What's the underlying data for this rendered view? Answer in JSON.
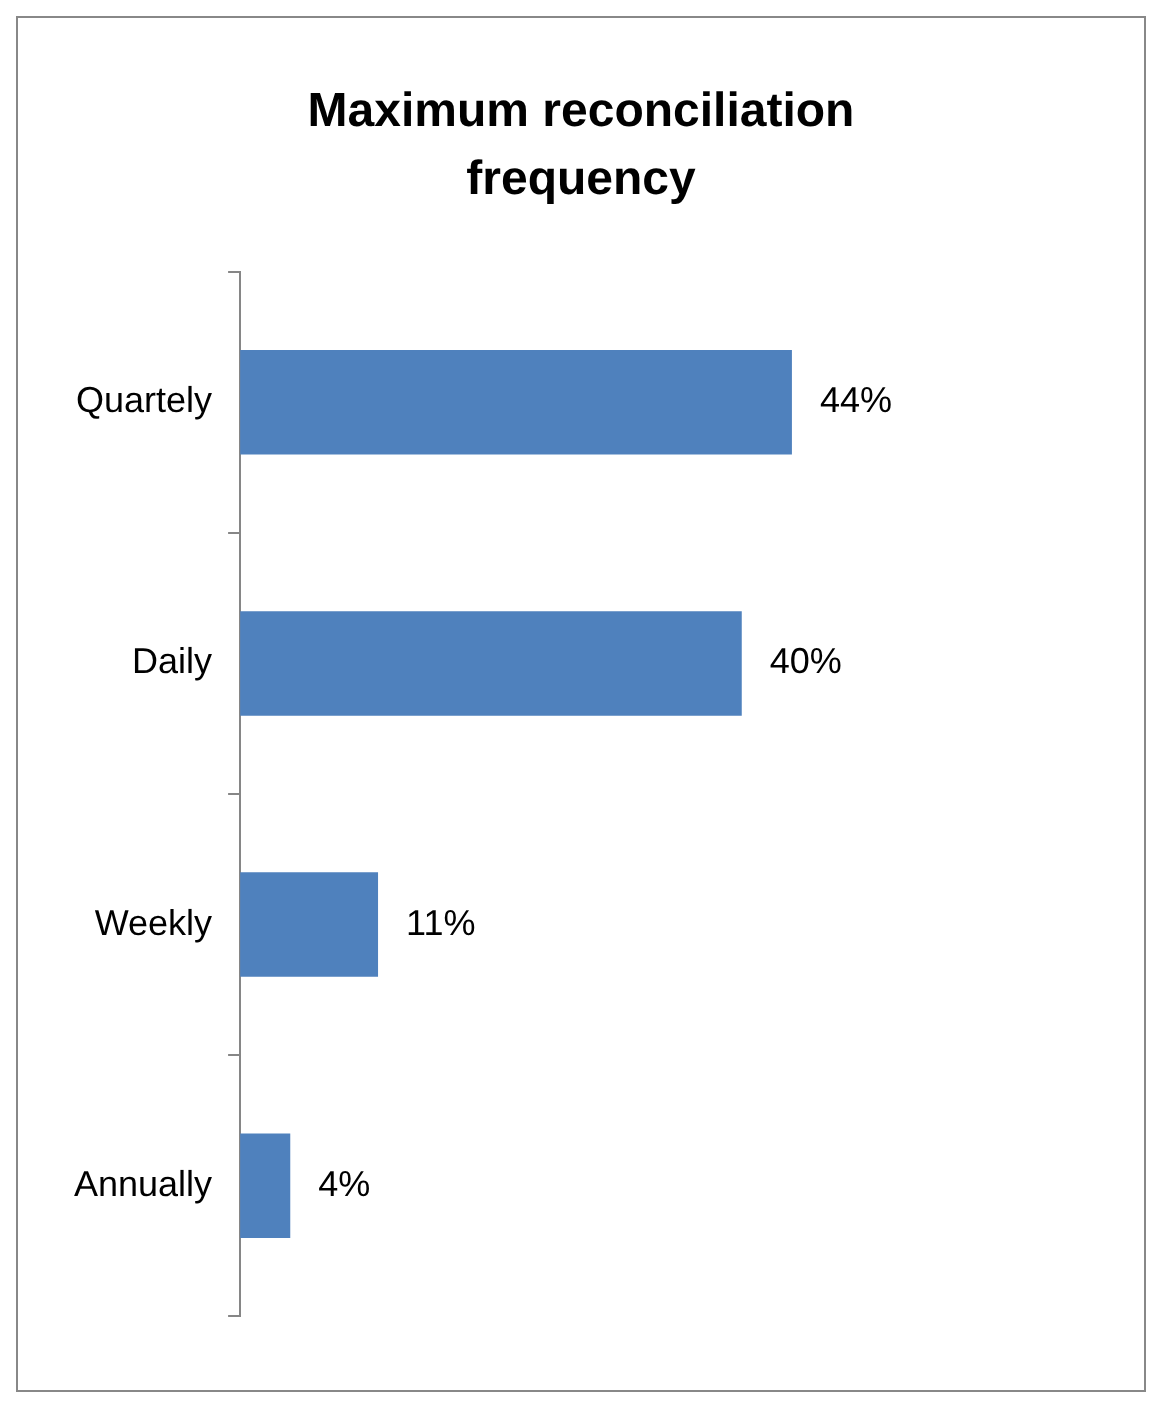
{
  "chart_data": {
    "type": "bar",
    "orientation": "horizontal",
    "title": "Maximum reconciliation frequency",
    "categories": [
      "Quartely",
      "Daily",
      "Weekly",
      "Annually"
    ],
    "values": [
      44,
      40,
      11,
      4
    ],
    "value_labels": [
      "44%",
      "40%",
      "11%",
      "4%"
    ],
    "color": "#4f81bd"
  }
}
